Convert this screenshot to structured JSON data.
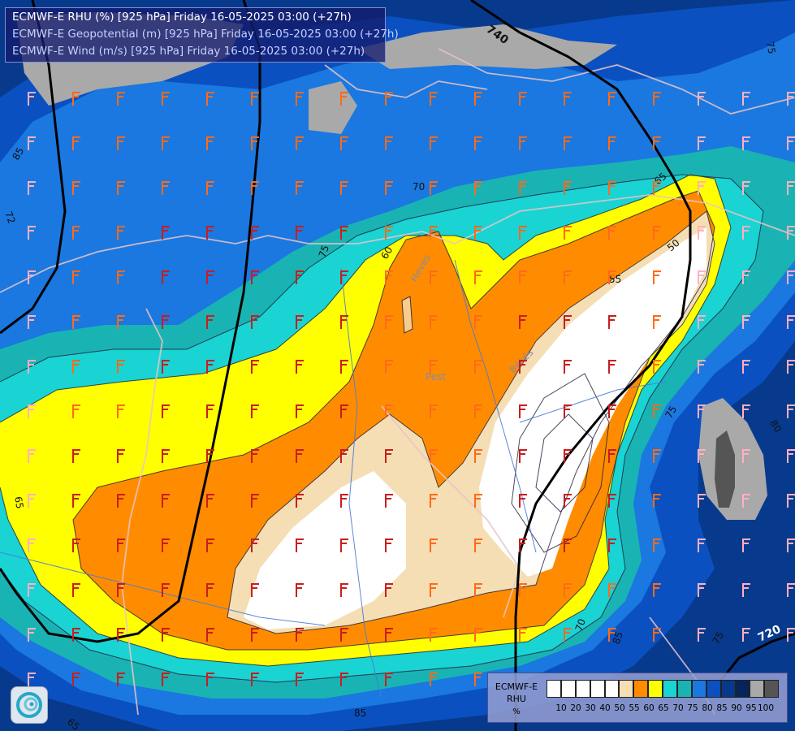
{
  "header": {
    "line1": "ECMWF-E RHU (%) [925 hPa] Friday 16-05-2025 03:00 (+27h)",
    "line2": "ECMWF-E Geopotential (m) [925 hPa] Friday 16-05-2025 03:00 (+27h)",
    "line3": "ECMWF-E Wind (m/s) [925 hPa] Friday 16-05-2025 03:00 (+27h)"
  },
  "legend": {
    "name_line1": "ECMWF-E",
    "name_line2": "RHU",
    "unit": "%",
    "colors": [
      "#ffffff",
      "#ffffff",
      "#ffffff",
      "#ffffff",
      "#ffffff",
      "#f5deb3",
      "#ff8c00",
      "#ffff00",
      "#1ad3d3",
      "#1ab3b3",
      "#1a78e0",
      "#0a50c0",
      "#073a8c",
      "#06245a",
      "#a9a9a9",
      "#555555"
    ],
    "ticks": [
      "10",
      "20",
      "30",
      "40",
      "50",
      "55",
      "60",
      "65",
      "70",
      "75",
      "80",
      "85",
      "90",
      "95",
      "100"
    ]
  },
  "contour_labels": {
    "geopotential": [
      "740",
      "720"
    ],
    "rhu": [
      "85",
      "75",
      "70",
      "65",
      "60",
      "50",
      "55",
      "75",
      "80",
      "70",
      "85",
      "75",
      "65",
      "65",
      "85",
      "72",
      "75"
    ]
  },
  "place_labels": {
    "hevs": "Heves",
    "pest": "Pest",
    "bekes": "Békés"
  }
}
